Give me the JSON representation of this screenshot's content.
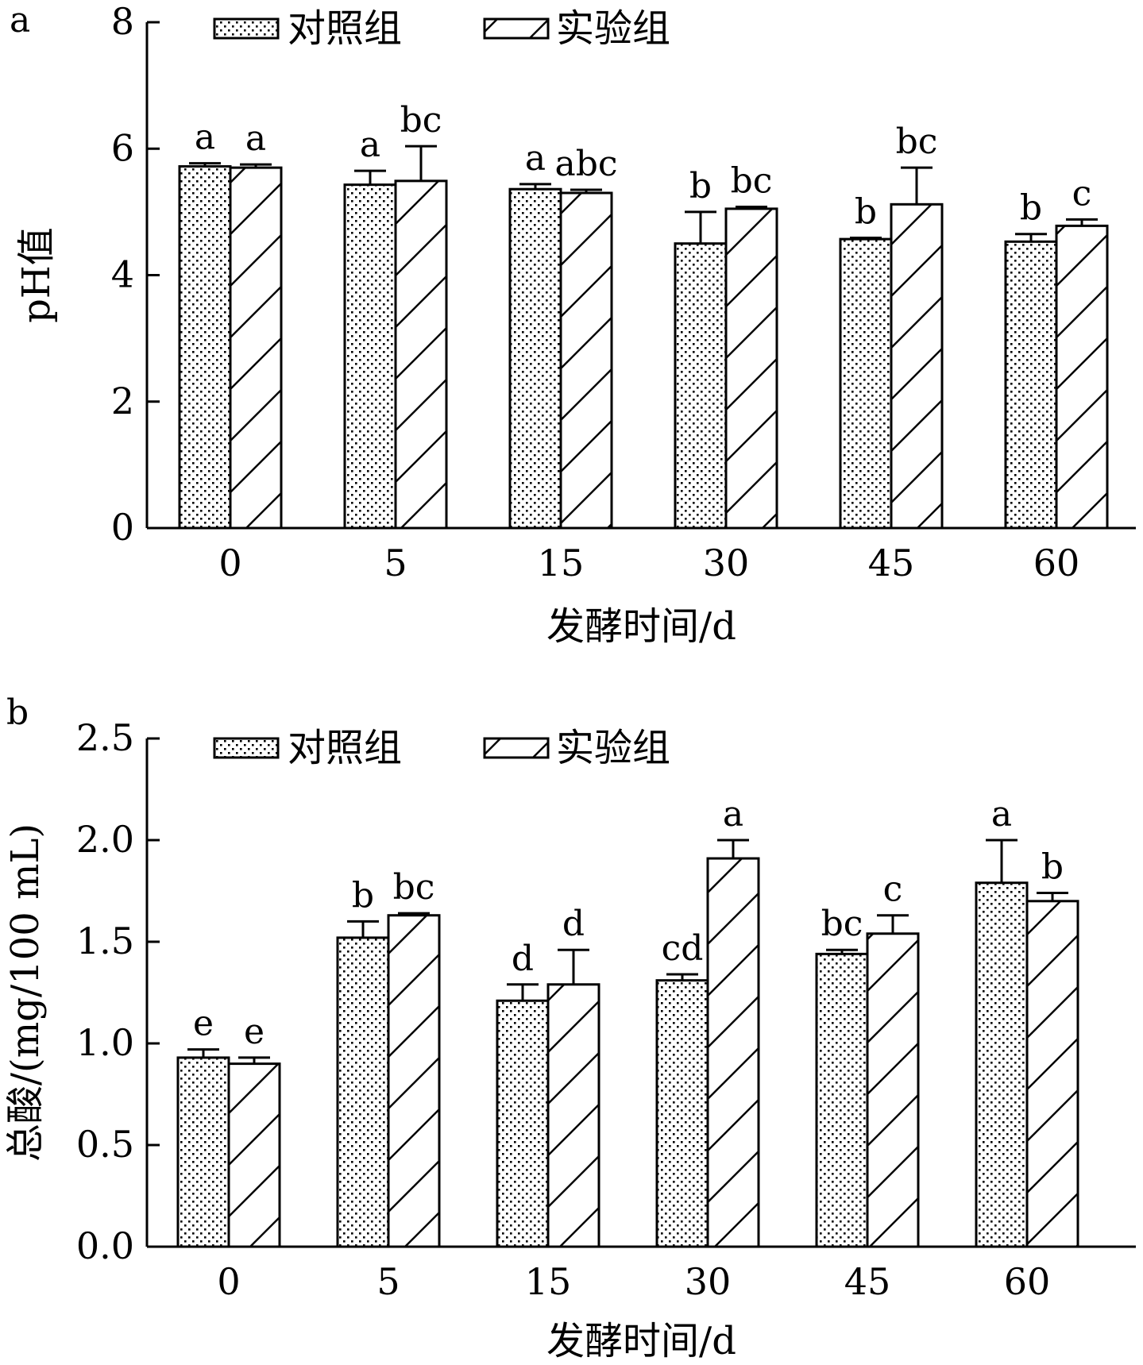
{
  "chart_data": [
    {
      "type": "bar",
      "panel_label": "a",
      "categories": [
        "0",
        "5",
        "15",
        "30",
        "45",
        "60"
      ],
      "xlabel": "发酵时间/d",
      "ylabel": "pH值",
      "ylim": [
        0,
        8
      ],
      "yticks": [
        "0",
        "2",
        "4",
        "6",
        "8"
      ],
      "legend_position": "top",
      "series": [
        {
          "name": "对照组",
          "pattern": "dots",
          "values": [
            5.72,
            5.43,
            5.36,
            4.5,
            4.57,
            4.53
          ],
          "errors": [
            0.05,
            0.22,
            0.08,
            0.5,
            0.02,
            0.12
          ],
          "sig_labels": [
            "a",
            "a",
            "a",
            "b",
            "b",
            "b"
          ]
        },
        {
          "name": "实验组",
          "pattern": "hatch",
          "values": [
            5.7,
            5.49,
            5.3,
            5.05,
            5.12,
            4.78
          ],
          "errors": [
            0.05,
            0.55,
            0.05,
            0.03,
            0.58,
            0.1
          ],
          "sig_labels": [
            "a",
            "bc",
            "abc",
            "bc",
            "bc",
            "c"
          ]
        }
      ]
    },
    {
      "type": "bar",
      "panel_label": "b",
      "categories": [
        "0",
        "5",
        "15",
        "30",
        "45",
        "60"
      ],
      "xlabel": "发酵时间/d",
      "ylabel": "总酸/(mg/100 mL)",
      "ylim": [
        0,
        2.5
      ],
      "yticks": [
        "0.0",
        "0.5",
        "1.0",
        "1.5",
        "2.0",
        "2.5"
      ],
      "legend_position": "top",
      "series": [
        {
          "name": "对照组",
          "pattern": "dots",
          "values": [
            0.93,
            1.52,
            1.21,
            1.31,
            1.44,
            1.79
          ],
          "errors": [
            0.04,
            0.08,
            0.08,
            0.03,
            0.02,
            0.21
          ],
          "sig_labels": [
            "e",
            "b",
            "d",
            "cd",
            "bc",
            "a"
          ]
        },
        {
          "name": "实验组",
          "pattern": "hatch",
          "values": [
            0.9,
            1.63,
            1.29,
            1.91,
            1.54,
            1.7
          ],
          "errors": [
            0.03,
            0.01,
            0.17,
            0.09,
            0.09,
            0.04
          ],
          "sig_labels": [
            "e",
            "bc",
            "d",
            "a",
            "c",
            "b"
          ]
        }
      ]
    }
  ]
}
